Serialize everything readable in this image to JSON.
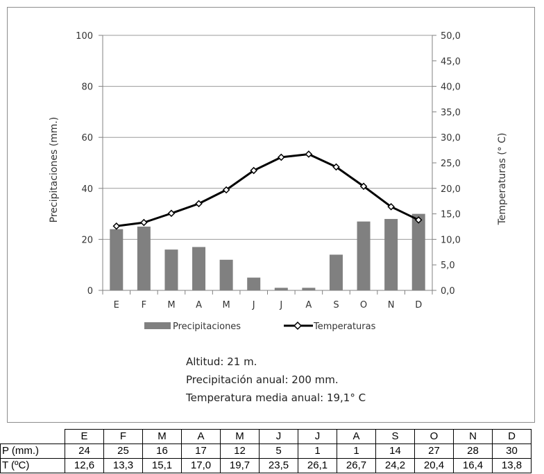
{
  "chart_data": {
    "type": "bar+line",
    "categories": [
      "E",
      "F",
      "M",
      "A",
      "M",
      "J",
      "J",
      "A",
      "S",
      "O",
      "N",
      "D"
    ],
    "series": [
      {
        "name": "Precipitaciones",
        "type": "bar",
        "axis": "left",
        "values": [
          24,
          25,
          16,
          17,
          12,
          5,
          1,
          1,
          14,
          27,
          28,
          30
        ]
      },
      {
        "name": "Temperaturas",
        "type": "line",
        "axis": "right",
        "values": [
          12.6,
          13.3,
          15.1,
          17.0,
          19.7,
          23.5,
          26.1,
          26.7,
          24.2,
          20.4,
          16.4,
          13.8
        ]
      }
    ],
    "ylabel_left": "Precipitaciones (mm.)",
    "ylabel_right": "Temperaturas (° C)",
    "ylim_left": [
      0,
      100
    ],
    "ylim_right": [
      0,
      50
    ],
    "yticks_left": [
      "0",
      "20",
      "40",
      "60",
      "80",
      "100"
    ],
    "yticks_right": [
      "0,0",
      "5,0",
      "10,0",
      "15,0",
      "20,0",
      "25,0",
      "30,0",
      "35,0",
      "40,0",
      "45,0",
      "50,0"
    ],
    "grid": true,
    "legend": "bottom",
    "colors": {
      "bar": "#808080",
      "line": "#000000"
    }
  },
  "info": {
    "altitud": "Altitud: 21 m.",
    "precipitacion": "Precipitación anual: 200 mm.",
    "temperatura": "Temperatura media anual: 19,1° C"
  },
  "table": {
    "header": [
      "E",
      "F",
      "M",
      "A",
      "M",
      "J",
      "J",
      "A",
      "S",
      "O",
      "N",
      "D"
    ],
    "rows": [
      {
        "label": "P (mm.)",
        "values": [
          "24",
          "25",
          "16",
          "17",
          "12",
          "5",
          "1",
          "1",
          "14",
          "27",
          "28",
          "30"
        ]
      },
      {
        "label": "T (ºC)",
        "values": [
          "12,6",
          "13,3",
          "15,1",
          "17,0",
          "19,7",
          "23,5",
          "26,1",
          "26,7",
          "24,2",
          "20,4",
          "16,4",
          "13,8"
        ]
      }
    ]
  }
}
